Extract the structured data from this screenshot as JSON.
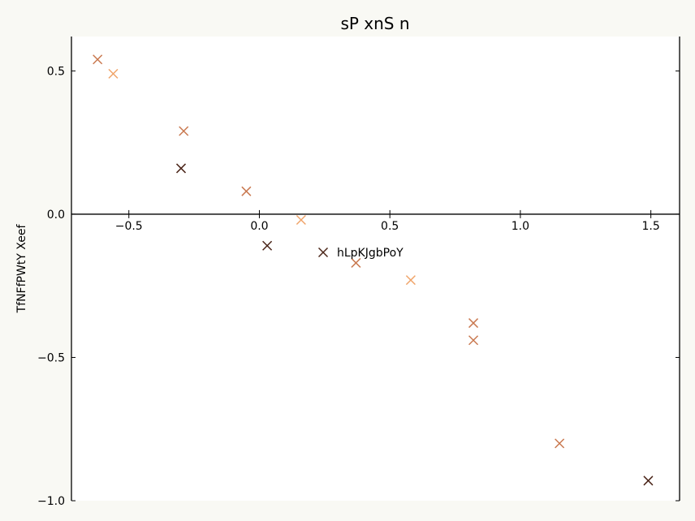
{
  "chart_data": {
    "type": "scatter",
    "title": "sP xnS n",
    "xlabel": "",
    "ylabel": "TfNFfPWtY Xeef",
    "xlim": [
      -0.72,
      1.61
    ],
    "ylim": [
      -1.0,
      0.62
    ],
    "x_ticks": [
      -0.5,
      0.0,
      0.5,
      1.0,
      1.5
    ],
    "y_ticks": [
      -1.0,
      -0.5,
      0.0,
      0.5
    ],
    "x_tick_labels": [
      "−0.5",
      "0.0",
      "0.5",
      "1.0",
      "1.5"
    ],
    "y_tick_labels": [
      "−1.0",
      "−0.5",
      "0.0",
      "0.5"
    ],
    "grid": false,
    "legend": {
      "position": "center",
      "entries": [
        {
          "label": "hLpKJgbPoY",
          "color": "#4a2418"
        }
      ]
    },
    "series": [
      {
        "marker": "x",
        "points": [
          {
            "x": -0.62,
            "y": 0.54,
            "color": "#c9784f"
          },
          {
            "x": -0.56,
            "y": 0.49,
            "color": "#f0a46a"
          },
          {
            "x": -0.29,
            "y": 0.29,
            "color": "#c9784f"
          },
          {
            "x": -0.3,
            "y": 0.16,
            "color": "#4a2418"
          },
          {
            "x": -0.05,
            "y": 0.08,
            "color": "#c9784f"
          },
          {
            "x": 0.16,
            "y": -0.02,
            "color": "#f0a46a"
          },
          {
            "x": 0.03,
            "y": -0.11,
            "color": "#4a2418"
          },
          {
            "x": 0.37,
            "y": -0.17,
            "color": "#c9784f"
          },
          {
            "x": 0.58,
            "y": -0.23,
            "color": "#f0a46a"
          },
          {
            "x": 0.82,
            "y": -0.38,
            "color": "#c9784f"
          },
          {
            "x": 0.82,
            "y": -0.44,
            "color": "#c9784f"
          },
          {
            "x": 1.15,
            "y": -0.8,
            "color": "#c9784f"
          },
          {
            "x": 1.49,
            "y": -0.93,
            "color": "#4a2418"
          }
        ]
      }
    ]
  }
}
